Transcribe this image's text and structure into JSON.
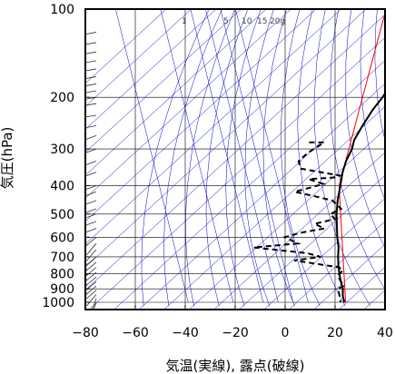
{
  "chart_data": {
    "type": "line",
    "xlabel": "気温(実線), 露点(破線)",
    "ylabel": "気圧(hPa)",
    "x_ticks": [
      -80,
      -60,
      -40,
      -20,
      0,
      20,
      40
    ],
    "x_tick_labels": [
      "−80",
      "−60",
      "−40",
      "−20",
      "0",
      "20",
      "40"
    ],
    "y_ticks": [
      100,
      200,
      300,
      400,
      500,
      600,
      700,
      800,
      900,
      1000
    ],
    "y_tick_labels": [
      "100",
      "200",
      "300",
      "400",
      "500",
      "600",
      "700",
      "800",
      "900",
      "1000"
    ],
    "xlim": [
      -80,
      40
    ],
    "ylim": [
      1030,
      100
    ],
    "y_scale": "log",
    "mixing_ratio_labels": [
      "1",
      "5",
      "10",
      "15",
      "20g"
    ],
    "series": [
      {
        "kind": "temperature",
        "style": "solid",
        "color": "#000000",
        "points": [
          {
            "p": 100,
            "t": -62
          },
          {
            "p": 105,
            "t": -63
          },
          {
            "p": 110,
            "t": -61
          },
          {
            "p": 115,
            "t": -62.5
          },
          {
            "p": 125,
            "t": -63
          },
          {
            "p": 140,
            "t": -62
          },
          {
            "p": 160,
            "t": -59
          },
          {
            "p": 180,
            "t": -57
          },
          {
            "p": 200,
            "t": -54.5
          },
          {
            "p": 220,
            "t": -53
          },
          {
            "p": 250,
            "t": -50
          },
          {
            "p": 280,
            "t": -47
          },
          {
            "p": 300,
            "t": -44
          },
          {
            "p": 330,
            "t": -41
          },
          {
            "p": 360,
            "t": -37.5
          },
          {
            "p": 400,
            "t": -32.5
          },
          {
            "p": 450,
            "t": -27
          },
          {
            "p": 500,
            "t": -21.5
          },
          {
            "p": 550,
            "t": -16
          },
          {
            "p": 600,
            "t": -11
          },
          {
            "p": 650,
            "t": -6
          },
          {
            "p": 700,
            "t": -2
          },
          {
            "p": 750,
            "t": 2
          },
          {
            "p": 800,
            "t": 6
          },
          {
            "p": 850,
            "t": 10
          },
          {
            "p": 900,
            "t": 14
          },
          {
            "p": 950,
            "t": 17
          },
          {
            "p": 1000,
            "t": 20.5
          }
        ]
      },
      {
        "kind": "dewpoint",
        "style": "dashed",
        "color": "#000000",
        "points": [
          {
            "p": 285,
            "t": -64
          },
          {
            "p": 285,
            "t": -58
          },
          {
            "p": 310,
            "t": -60
          },
          {
            "p": 330,
            "t": -60
          },
          {
            "p": 350,
            "t": -56
          },
          {
            "p": 370,
            "t": -37
          },
          {
            "p": 375,
            "t": -38
          },
          {
            "p": 380,
            "t": -48
          },
          {
            "p": 395,
            "t": -40
          },
          {
            "p": 420,
            "t": -48
          },
          {
            "p": 435,
            "t": -38
          },
          {
            "p": 450,
            "t": -29
          },
          {
            "p": 480,
            "t": -22
          },
          {
            "p": 500,
            "t": -24
          },
          {
            "p": 520,
            "t": -20
          },
          {
            "p": 540,
            "t": -26
          },
          {
            "p": 560,
            "t": -20
          },
          {
            "p": 580,
            "t": -28
          },
          {
            "p": 600,
            "t": -32
          },
          {
            "p": 630,
            "t": -24
          },
          {
            "p": 650,
            "t": -40
          },
          {
            "p": 680,
            "t": -16
          },
          {
            "p": 700,
            "t": -9
          },
          {
            "p": 720,
            "t": -18
          },
          {
            "p": 760,
            "t": 3
          },
          {
            "p": 780,
            "t": 6
          },
          {
            "p": 810,
            "t": 6
          },
          {
            "p": 830,
            "t": 8
          },
          {
            "p": 850,
            "t": 10
          },
          {
            "p": 880,
            "t": 13
          },
          {
            "p": 900,
            "t": 12
          },
          {
            "p": 940,
            "t": 15
          },
          {
            "p": 1000,
            "t": 19
          }
        ]
      }
    ],
    "reference_line": {
      "kind": "parcel",
      "color": "#ff0000",
      "points": [
        {
          "p": 100,
          "t": -92
        },
        {
          "p": 400,
          "t": -33
        },
        {
          "p": 1000,
          "t": 21
        }
      ]
    },
    "wind_barbs": [
      {
        "p": 100,
        "speed_kt": 10,
        "dir": 270
      },
      {
        "p": 120,
        "speed_kt": 20,
        "dir": 260
      },
      {
        "p": 130,
        "speed_kt": 20,
        "dir": 260
      },
      {
        "p": 140,
        "speed_kt": 20,
        "dir": 260
      },
      {
        "p": 150,
        "speed_kt": 20,
        "dir": 260
      },
      {
        "p": 160,
        "speed_kt": 20,
        "dir": 260
      },
      {
        "p": 170,
        "speed_kt": 15,
        "dir": 260
      },
      {
        "p": 180,
        "speed_kt": 15,
        "dir": 260
      },
      {
        "p": 190,
        "speed_kt": 15,
        "dir": 260
      },
      {
        "p": 200,
        "speed_kt": 20,
        "dir": 260
      },
      {
        "p": 210,
        "speed_kt": 15,
        "dir": 260
      },
      {
        "p": 230,
        "speed_kt": 15,
        "dir": 260
      },
      {
        "p": 250,
        "speed_kt": 15,
        "dir": 260
      },
      {
        "p": 270,
        "speed_kt": 10,
        "dir": 250
      },
      {
        "p": 300,
        "speed_kt": 5,
        "dir": 250
      },
      {
        "p": 330,
        "speed_kt": 10,
        "dir": 250
      },
      {
        "p": 360,
        "speed_kt": 10,
        "dir": 250
      },
      {
        "p": 400,
        "speed_kt": 15,
        "dir": 250
      },
      {
        "p": 420,
        "speed_kt": 15,
        "dir": 250
      },
      {
        "p": 450,
        "speed_kt": 20,
        "dir": 250
      },
      {
        "p": 480,
        "speed_kt": 15,
        "dir": 250
      },
      {
        "p": 500,
        "speed_kt": 15,
        "dir": 250
      },
      {
        "p": 530,
        "speed_kt": 15,
        "dir": 250
      },
      {
        "p": 560,
        "speed_kt": 15,
        "dir": 250
      },
      {
        "p": 600,
        "speed_kt": 15,
        "dir": 230
      },
      {
        "p": 630,
        "speed_kt": 10,
        "dir": 220
      },
      {
        "p": 660,
        "speed_kt": 10,
        "dir": 220
      },
      {
        "p": 700,
        "speed_kt": 15,
        "dir": 230
      },
      {
        "p": 730,
        "speed_kt": 15,
        "dir": 230
      },
      {
        "p": 760,
        "speed_kt": 15,
        "dir": 230
      },
      {
        "p": 790,
        "speed_kt": 15,
        "dir": 230
      },
      {
        "p": 820,
        "speed_kt": 15,
        "dir": 230
      },
      {
        "p": 850,
        "speed_kt": 15,
        "dir": 230
      },
      {
        "p": 880,
        "speed_kt": 15,
        "dir": 230
      },
      {
        "p": 910,
        "speed_kt": 10,
        "dir": 230
      },
      {
        "p": 940,
        "speed_kt": 10,
        "dir": 220
      },
      {
        "p": 970,
        "speed_kt": 5,
        "dir": 200
      },
      {
        "p": 1000,
        "speed_kt": 5,
        "dir": 200
      }
    ],
    "grid": true,
    "colors": {
      "frame": "#000000",
      "grid": "#000000",
      "isotherm": "#0000cc",
      "parcel": "#ff0000"
    }
  }
}
